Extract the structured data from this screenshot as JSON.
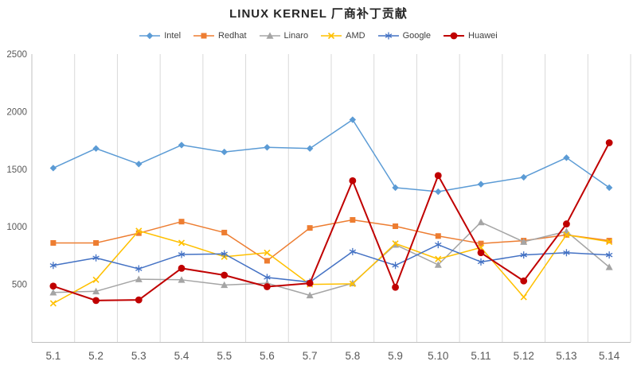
{
  "chart_data": {
    "type": "line",
    "title": "LINUX KERNEL 厂商补丁贡献",
    "xlabel": "",
    "ylabel": "",
    "categories": [
      "5.1",
      "5.2",
      "5.3",
      "5.4",
      "5.5",
      "5.6",
      "5.7",
      "5.8",
      "5.9",
      "5.10",
      "5.11",
      "5.12",
      "5.13",
      "5.14"
    ],
    "ylim": [
      0,
      2500
    ],
    "yticks": [
      500,
      1000,
      1500,
      2000,
      2500
    ],
    "grid": "vertical",
    "legend_position": "top",
    "colors": {
      "grid": "#D9D9D9",
      "axis": "#BFBFBF",
      "tick_text": "#595959",
      "title_text": "#262626"
    },
    "series": [
      {
        "name": "Intel",
        "color": "#5B9BD5",
        "marker": "diamond",
        "width": 1.5,
        "values": [
          1510,
          1680,
          1545,
          1710,
          1650,
          1690,
          1680,
          1930,
          1340,
          1305,
          1370,
          1430,
          1600,
          1340
        ]
      },
      {
        "name": "Redhat",
        "color": "#ED7D31",
        "marker": "square",
        "width": 1.5,
        "values": [
          860,
          860,
          945,
          1045,
          950,
          705,
          990,
          1060,
          1005,
          920,
          855,
          880,
          930,
          880
        ]
      },
      {
        "name": "Linaro",
        "color": "#A5A5A5",
        "marker": "triangle",
        "width": 1.5,
        "values": [
          430,
          440,
          545,
          540,
          495,
          510,
          405,
          510,
          845,
          670,
          1040,
          870,
          960,
          650
        ]
      },
      {
        "name": "AMD",
        "color": "#FFC000",
        "marker": "x",
        "width": 1.5,
        "values": [
          335,
          540,
          965,
          860,
          740,
          775,
          500,
          505,
          855,
          720,
          820,
          390,
          930,
          870
        ]
      },
      {
        "name": "Google",
        "color": "#4472C4",
        "marker": "asterisk",
        "width": 1.5,
        "values": [
          665,
          730,
          635,
          760,
          765,
          560,
          520,
          785,
          665,
          845,
          695,
          755,
          775,
          755
        ]
      },
      {
        "name": "Huawei",
        "color": "#C00000",
        "marker": "circle",
        "width": 2,
        "values": [
          485,
          360,
          365,
          640,
          580,
          480,
          510,
          1400,
          475,
          1445,
          775,
          530,
          1025,
          1730
        ]
      }
    ]
  }
}
